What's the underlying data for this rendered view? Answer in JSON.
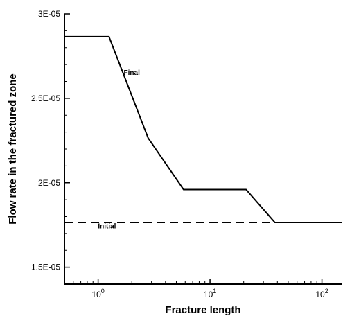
{
  "chart_data": {
    "type": "line",
    "title": "",
    "xlabel": "Fracture length",
    "ylabel": "Flow rate in the fractured zone",
    "xscale": "log",
    "xlim": [
      0.5,
      150
    ],
    "ylim": [
      1.4e-05,
      3e-05
    ],
    "grid": false,
    "x_ticks": [
      {
        "value": 1,
        "label": "0",
        "base": "10"
      },
      {
        "value": 10,
        "label": "1",
        "base": "10"
      },
      {
        "value": 100,
        "label": "2",
        "base": "10"
      }
    ],
    "y_ticks": [
      {
        "value": 1.5e-05,
        "label": "1.5E-05"
      },
      {
        "value": 2e-05,
        "label": "2E-05"
      },
      {
        "value": 2.5e-05,
        "label": "2.5E-05"
      },
      {
        "value": 3e-05,
        "label": "3E-05"
      }
    ],
    "series": [
      {
        "name": "Final",
        "style": "solid",
        "color": "#000000",
        "x": [
          0.5,
          1.25,
          2.8,
          5.8,
          21.0,
          38.0,
          150
        ],
        "y": [
          2.865e-05,
          2.865e-05,
          2.265e-05,
          1.96e-05,
          1.96e-05,
          1.765e-05,
          1.765e-05
        ]
      },
      {
        "name": "Initial",
        "style": "dashed",
        "color": "#000000",
        "x": [
          0.5,
          150
        ],
        "y": [
          1.765e-05,
          1.765e-05
        ]
      }
    ],
    "annotations": [
      {
        "text": "Final",
        "x": 2.0,
        "y": 2.64e-05
      },
      {
        "text": "Initial",
        "x": 1.2,
        "y": 1.73e-05
      }
    ]
  }
}
